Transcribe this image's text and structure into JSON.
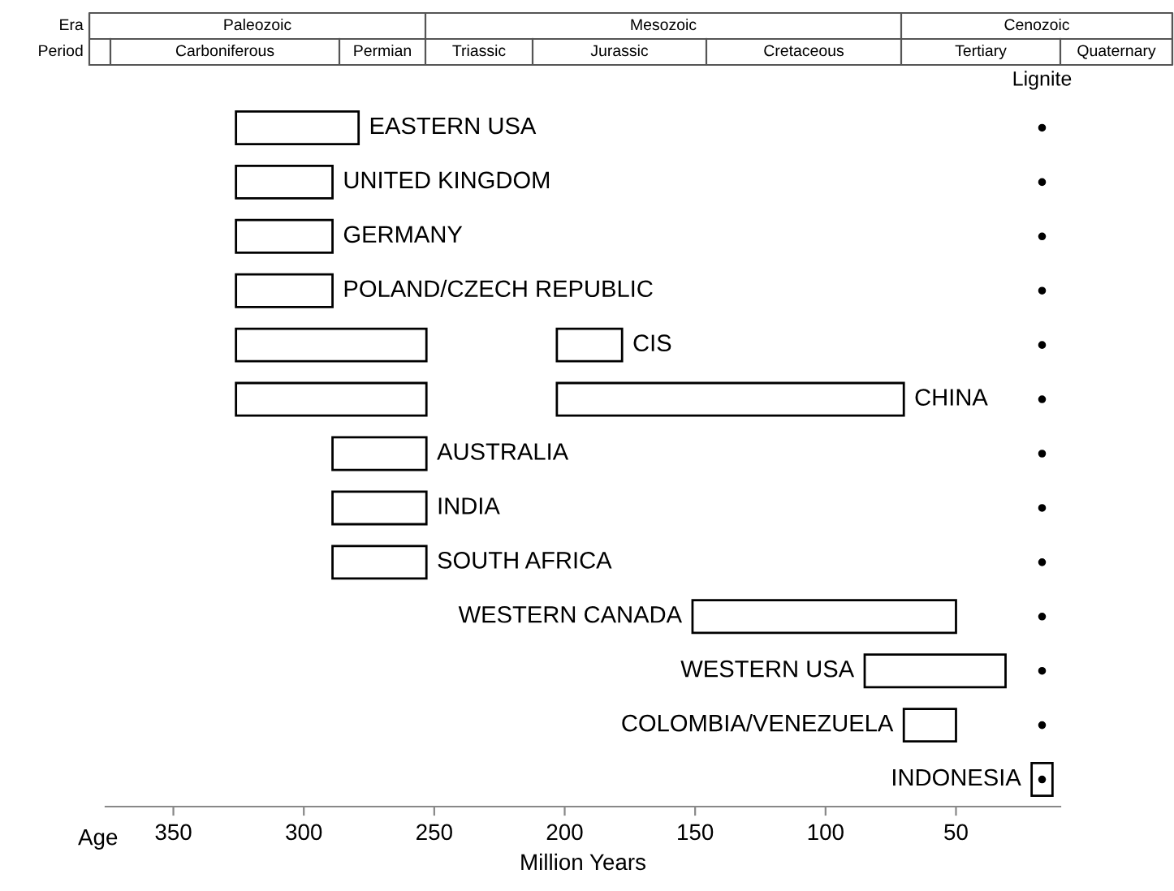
{
  "chart_data": [
    {
      "type": "other",
      "y_categories": [
        "Era",
        "Period"
      ],
      "cell_labels": [
        [
          "Paleozoic",
          "Mesozoic",
          "Cenozoic"
        ],
        [
          "Carboniferous",
          "Permian",
          "Triassic",
          "Jurassic",
          "Cretaceous",
          "Tertiary",
          "Quaternary"
        ]
      ]
    },
    {
      "type": "bar",
      "orientation": "horizontal",
      "xlabel": "Million Years",
      "annotations": [
        "Age"
      ],
      "categories": [
        "EASTERN USA",
        "UNITED KINGDOM",
        "GERMANY",
        "POLAND/CZECH REPUBLIC",
        "CIS",
        "CHINA",
        "AUSTRALIA",
        "INDIA",
        "SOUTH AFRICA",
        "WESTERN CANADA",
        "WESTERN USA",
        "COLOMBIA/VENEZUELA",
        "INDONESIA"
      ],
      "series": [
        {
          "color": "#000000",
          "base": [
            279,
            289,
            289,
            289,
            253,
            253,
            253,
            253,
            253,
            50,
            31,
            50,
            13
          ],
          "values": [
            47,
            37,
            37,
            37,
            73,
            73,
            36,
            36,
            36,
            101,
            54,
            20,
            8
          ]
        },
        {
          "color": "#000000",
          "base": [
            null,
            null,
            null,
            null,
            178,
            70,
            null,
            null,
            null,
            null,
            null,
            null,
            null
          ],
          "values": [
            null,
            null,
            null,
            null,
            25,
            133,
            null,
            null,
            null,
            null,
            null,
            null,
            null
          ]
        },
        {
          "type": "scatter",
          "name": "Lignite",
          "color": "#000000",
          "marker": "circle",
          "values": [
            17,
            17,
            17,
            17,
            17,
            17,
            17,
            17,
            17,
            17,
            17,
            17,
            17
          ]
        }
      ],
      "xlim": [
        376,
        10
      ],
      "xticks": [
        350,
        300,
        250,
        200,
        150,
        100,
        50
      ],
      "tick_labels": "x",
      "grid": false,
      "legend": false
    }
  ]
}
